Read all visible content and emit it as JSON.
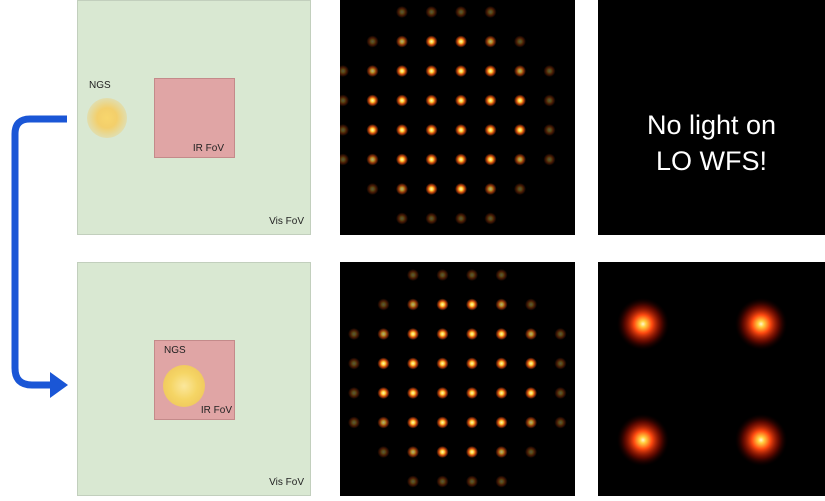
{
  "top": {
    "ngs_label": "NGS",
    "ir_label": "IR FoV",
    "vis_label": "Vis FoV",
    "lo_message": "No light on\nLO WFS!"
  },
  "bottom": {
    "ngs_label": "NGS",
    "ir_label": "IR FoV",
    "vis_label": "Vis FoV"
  },
  "colors": {
    "arrow": "#1a56d6",
    "vis_fov": "#d9e8d2",
    "ir_fov": "#e0a5a5",
    "ngs_glow": "#f5c842",
    "spot_core": "#fff4c4",
    "spot_halo": "#ff5a10"
  }
}
